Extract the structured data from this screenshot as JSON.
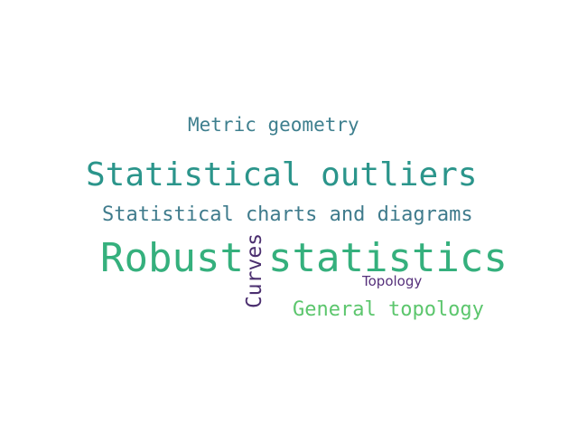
{
  "words": [
    {
      "id": "metric-geometry",
      "text": "Metric geometry",
      "color": "#3e7f8e"
    },
    {
      "id": "statistical-outliers",
      "text": "Statistical outliers",
      "color": "#2b958b"
    },
    {
      "id": "statistical-charts",
      "text": "Statistical charts and diagrams",
      "color": "#3f7b8c"
    },
    {
      "id": "robust-statistics-left",
      "text": "Robust",
      "color": "#35b07d"
    },
    {
      "id": "robust-statistics-right",
      "text": "statistics",
      "color": "#35b07d"
    },
    {
      "id": "curves",
      "text": "Curves",
      "color": "#4b2f6f"
    },
    {
      "id": "topology",
      "text": "Topology",
      "color": "#55307b"
    },
    {
      "id": "general-topology",
      "text": "General topology",
      "color": "#5cc66d"
    }
  ]
}
